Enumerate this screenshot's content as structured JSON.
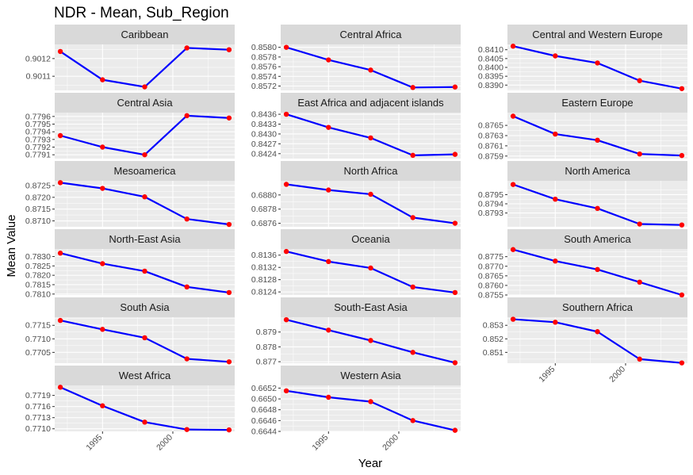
{
  "chart_data": {
    "type": "line",
    "title": "NDR - Mean, Sub_Region",
    "xlabel": "Year",
    "ylabel": "Mean Value",
    "x": [
      1992,
      1995,
      1998,
      2001,
      2004
    ],
    "xlim": [
      1991.6,
      2004.4
    ],
    "x_ticks": [
      1995,
      2000
    ],
    "facet_layout": {
      "columns": 3,
      "rows": 6
    },
    "colors": {
      "line": "#0000ff",
      "point": "#ff0000",
      "panel_bg": "#ebebeb",
      "strip_bg": "#d9d9d9",
      "grid": "#ffffff"
    },
    "panels": [
      {
        "name": "Caribbean",
        "values": [
          0.90124,
          0.90108,
          0.90104,
          0.90126,
          0.90125
        ],
        "ylim": [
          0.90102,
          0.90128
        ],
        "y_ticks": [
          "0.9011",
          "0.9012"
        ],
        "y_tick_values": [
          0.9011,
          0.9012
        ]
      },
      {
        "name": "Central Africa",
        "values": [
          0.858,
          0.85774,
          0.85753,
          0.85717,
          0.85718
        ],
        "ylim": [
          0.85711,
          0.85806
        ],
        "y_ticks": [
          "0.8572",
          "0.8574",
          "0.8576",
          "0.8578",
          "0.8580"
        ],
        "y_tick_values": [
          0.8572,
          0.8574,
          0.8576,
          0.8578,
          0.858
        ]
      },
      {
        "name": "Central and Western Europe",
        "values": [
          0.8412,
          0.84065,
          0.84025,
          0.83925,
          0.8388
        ],
        "ylim": [
          0.8387,
          0.8413
        ],
        "y_ticks": [
          "0.8390",
          "0.8395",
          "0.8400",
          "0.8405",
          "0.8410"
        ],
        "y_tick_values": [
          0.839,
          0.8395,
          0.84,
          0.8405,
          0.841
        ]
      },
      {
        "name": "Central Asia",
        "values": [
          0.77935,
          0.7792,
          0.7791,
          0.77961,
          0.77958
        ],
        "ylim": [
          0.77905,
          0.77965
        ],
        "y_ticks": [
          "0.7791",
          "0.7792",
          "0.7793",
          "0.7794",
          "0.7795",
          "0.7796"
        ],
        "y_tick_values": [
          0.7791,
          0.7792,
          0.7793,
          0.7794,
          0.7795,
          0.7796
        ]
      },
      {
        "name": "East Africa and adjacent islands",
        "values": [
          0.8436,
          0.8432,
          0.84288,
          0.84235,
          0.84238
        ],
        "ylim": [
          0.84225,
          0.84365
        ],
        "y_ticks": [
          "0.8424",
          "0.8427",
          "0.8430",
          "0.8433",
          "0.8436"
        ],
        "y_tick_values": [
          0.8424,
          0.8427,
          0.843,
          0.8433,
          0.8436
        ]
      },
      {
        "name": "Eastern Europe",
        "values": [
          0.87668,
          0.87633,
          0.87621,
          0.87594,
          0.87591
        ],
        "ylim": [
          0.87585,
          0.87675
        ],
        "y_ticks": [
          "0.8759",
          "0.8761",
          "0.8763",
          "0.8765"
        ],
        "y_tick_values": [
          0.8759,
          0.8761,
          0.8763,
          0.8765
        ]
      },
      {
        "name": "Mesoamerica",
        "values": [
          0.87262,
          0.87238,
          0.87202,
          0.87108,
          0.87085
        ],
        "ylim": [
          0.87075,
          0.8727
        ],
        "y_ticks": [
          "0.8710",
          "0.8715",
          "0.8720",
          "0.8725"
        ],
        "y_tick_values": [
          0.871,
          0.8715,
          0.872,
          0.8725
        ]
      },
      {
        "name": "North Africa",
        "values": [
          0.68815,
          0.68807,
          0.68801,
          0.68768,
          0.6876
        ],
        "ylim": [
          0.68755,
          0.6882
        ],
        "y_ticks": [
          "0.6876",
          "0.6878",
          "0.6880"
        ],
        "y_tick_values": [
          0.6876,
          0.6878,
          0.688
        ]
      },
      {
        "name": "North America",
        "values": [
          0.87961,
          0.87945,
          0.87935,
          0.87918,
          0.87917
        ],
        "ylim": [
          0.87915,
          0.87965
        ],
        "y_ticks": [
          "0.8793",
          "0.8794",
          "0.8795"
        ],
        "y_tick_values": [
          0.8793,
          0.8794,
          0.8795
        ]
      },
      {
        "name": "North-East Asia",
        "values": [
          0.78318,
          0.78262,
          0.78222,
          0.78138,
          0.78108
        ],
        "ylim": [
          0.78095,
          0.7834
        ],
        "y_ticks": [
          "0.7810",
          "0.7815",
          "0.7820",
          "0.7825",
          "0.7830"
        ],
        "y_tick_values": [
          0.781,
          0.7815,
          0.782,
          0.7825,
          0.783
        ]
      },
      {
        "name": "Oceania",
        "values": [
          0.81372,
          0.81339,
          0.81318,
          0.81256,
          0.81238
        ],
        "ylim": [
          0.8123,
          0.8138
        ],
        "y_ticks": [
          "0.8124",
          "0.8128",
          "0.8132",
          "0.8136"
        ],
        "y_tick_values": [
          0.8124,
          0.8128,
          0.8132,
          0.8136
        ]
      },
      {
        "name": "South America",
        "values": [
          0.87787,
          0.87727,
          0.87683,
          0.87617,
          0.8755
        ],
        "ylim": [
          0.8755,
          0.8779
        ],
        "y_ticks": [
          "0.8755",
          "0.8760",
          "0.8765",
          "0.8770",
          "0.8775"
        ],
        "y_tick_values": [
          0.8755,
          0.876,
          0.8765,
          0.877,
          0.8775
        ]
      },
      {
        "name": "South Asia",
        "values": [
          0.77168,
          0.77135,
          0.77104,
          0.77026,
          0.77015
        ],
        "ylim": [
          0.7701,
          0.7718
        ],
        "y_ticks": [
          "0.7705",
          "0.7710",
          "0.7715"
        ],
        "y_tick_values": [
          0.7705,
          0.771,
          0.7715
        ]
      },
      {
        "name": "South-East Asia",
        "values": [
          0.87983,
          0.87913,
          0.87843,
          0.87763,
          0.87693
        ],
        "ylim": [
          0.8769,
          0.88
        ],
        "y_ticks": [
          "0.877",
          "0.878",
          "0.879"
        ],
        "y_tick_values": [
          0.877,
          0.878,
          0.879
        ]
      },
      {
        "name": "Southern Africa",
        "values": [
          0.85345,
          0.85323,
          0.85253,
          0.8505,
          0.85022
        ],
        "ylim": [
          0.8502,
          0.8536
        ],
        "y_ticks": [
          "0.851",
          "0.852",
          "0.853"
        ],
        "y_tick_values": [
          0.851,
          0.852,
          0.853
        ]
      },
      {
        "name": "West Africa",
        "values": [
          0.77212,
          0.77162,
          0.77118,
          0.77098,
          0.77097
        ],
        "ylim": [
          0.77093,
          0.77217
        ],
        "y_ticks": [
          "0.7710",
          "0.7713",
          "0.7716",
          "0.7719"
        ],
        "y_tick_values": [
          0.771,
          0.7713,
          0.7716,
          0.7719
        ]
      },
      {
        "name": "Western Asia",
        "values": [
          0.66515,
          0.66503,
          0.66495,
          0.6646,
          0.66442
        ],
        "ylim": [
          0.6644,
          0.66525
        ],
        "y_ticks": [
          "0.6644",
          "0.6646",
          "0.6648",
          "0.6650",
          "0.6652"
        ],
        "y_tick_values": [
          0.6644,
          0.6646,
          0.6648,
          0.665,
          0.6652
        ]
      }
    ]
  }
}
